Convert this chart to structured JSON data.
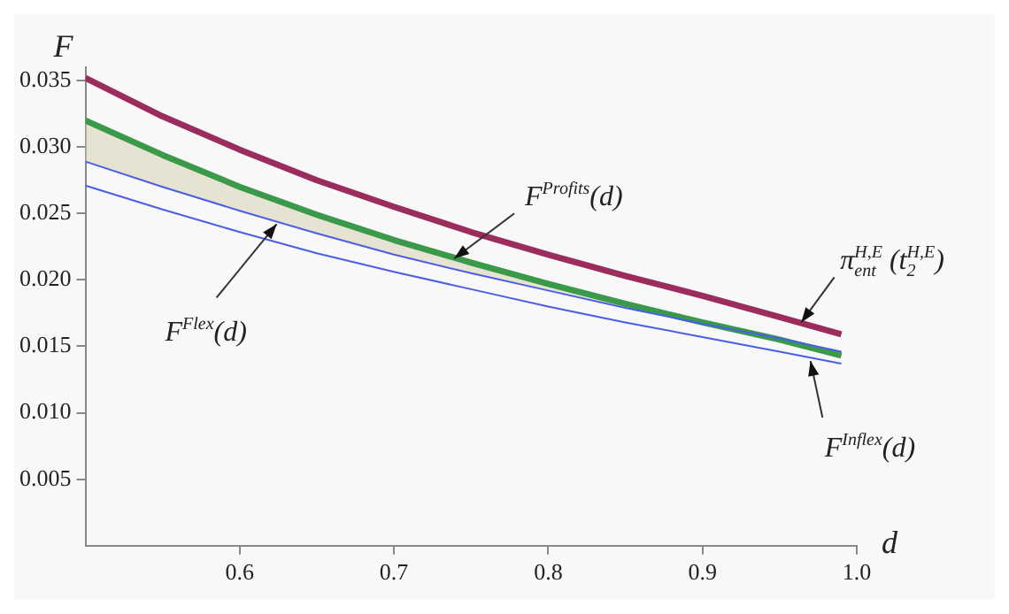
{
  "chart_data": {
    "type": "line",
    "xlabel": "d",
    "ylabel": "F",
    "x": [
      0.5,
      0.55,
      0.6,
      0.65,
      0.7,
      0.75,
      0.8,
      0.85,
      0.9,
      0.95,
      0.99
    ],
    "series": [
      {
        "color": "#9b2d5e",
        "values": [
          0.0352,
          0.0323,
          0.0298,
          0.0275,
          0.0255,
          0.0236,
          0.0219,
          0.0203,
          0.0188,
          0.0172,
          0.0159
        ]
      },
      {
        "color": "#3a9a4a",
        "values": [
          0.032,
          0.0294,
          0.027,
          0.0249,
          0.023,
          0.0213,
          0.0197,
          0.0182,
          0.0168,
          0.0155,
          0.0143
        ],
        "lower": [
          0.0289,
          0.027,
          0.0252,
          0.0235,
          0.0219,
          0.0205,
          0.0192,
          0.0179,
          0.0167,
          0.0156,
          0.0146
        ],
        "upper": [
          0.032,
          0.0294,
          0.027,
          0.0249,
          0.023,
          0.0213,
          0.0197,
          0.0182,
          0.0168,
          0.0155,
          0.0143
        ]
      },
      {
        "color": "#4a5ee8",
        "values": [
          0.0289,
          0.027,
          0.0252,
          0.0235,
          0.0219,
          0.0205,
          0.0192,
          0.0179,
          0.0167,
          0.0156,
          0.0146
        ]
      },
      {
        "color": "#4a5ee8",
        "values": [
          0.0271,
          0.0253,
          0.0236,
          0.022,
          0.0206,
          0.0193,
          0.018,
          0.0168,
          0.0157,
          0.0146,
          0.0137
        ]
      }
    ],
    "xlim": [
      0.5,
      1.0
    ],
    "xticks": [
      0.6,
      0.7,
      0.8,
      0.9,
      {
        "value": 1.0,
        "label": "1.0"
      }
    ],
    "ylim": [
      0,
      0.036
    ],
    "yticks": [
      {
        "value": 0.005,
        "label": "0.005"
      },
      {
        "value": 0.01,
        "label": "0.010"
      },
      {
        "value": 0.015,
        "label": "0.015"
      },
      {
        "value": 0.02,
        "label": "0.020"
      },
      {
        "value": 0.025,
        "label": "0.025"
      },
      {
        "value": 0.03,
        "label": "0.030"
      },
      {
        "value": 0.035,
        "label": "0.035"
      }
    ],
    "grid": false,
    "legend": false,
    "marker": "none",
    "line_style": "solid",
    "annotations": [
      {
        "text": "F$^{Flex}$(d)",
        "x": 0.624,
        "y": 0.0242
      },
      {
        "text": "F$^{Profits}$(d)",
        "x": 0.739,
        "y": 0.0216
      },
      {
        "text": "π$_{ent}$$^{H,E}$ (t$_{2}$$^{H,E}$)",
        "x": 0.964,
        "y": 0.0168
      },
      {
        "text": "F$^{Inflex}$(d)",
        "x": 0.97,
        "y": 0.0139
      }
    ]
  }
}
